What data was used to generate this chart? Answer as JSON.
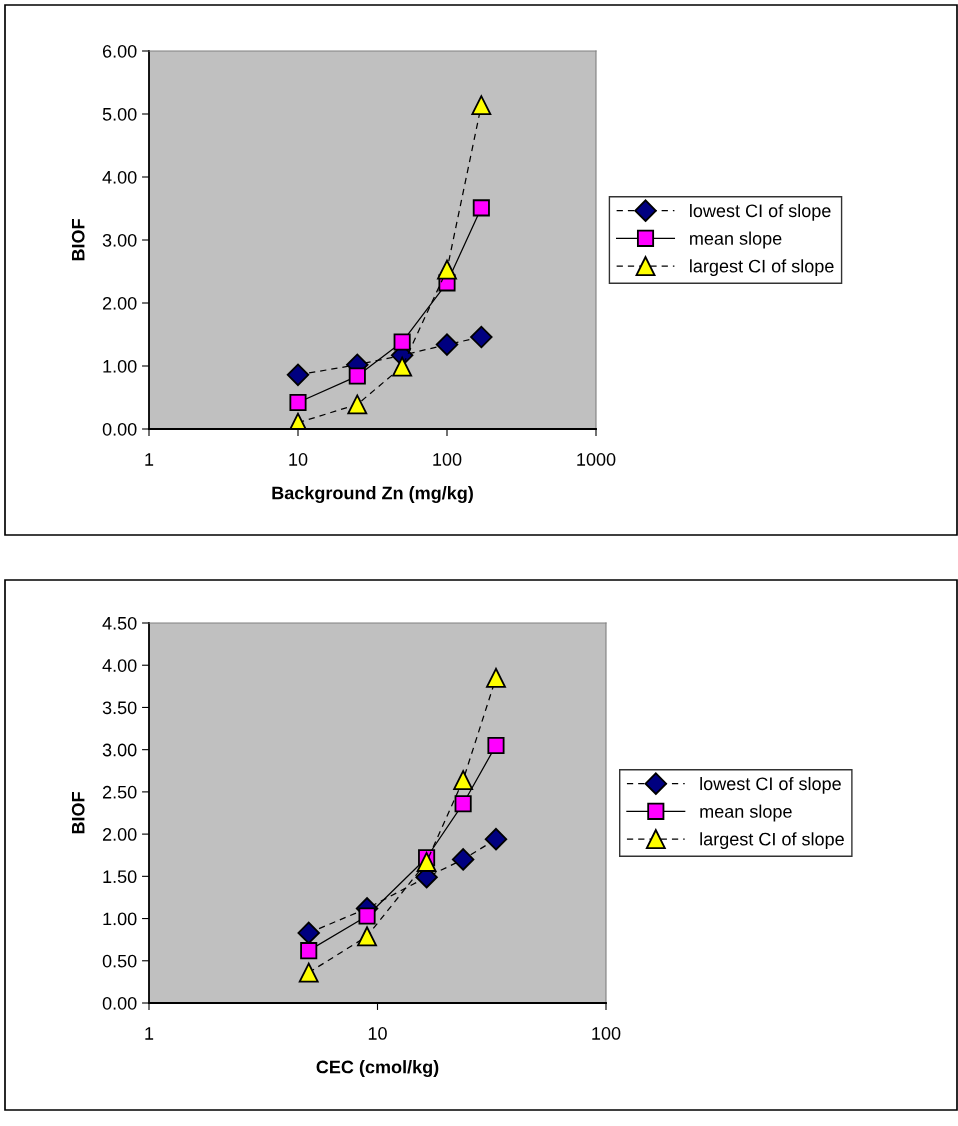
{
  "chart_data": [
    {
      "type": "line",
      "xlabel": "Background Zn (mg/kg)",
      "ylabel": "BIOF",
      "log": "x",
      "grid": false,
      "legend": "right",
      "x": [
        10,
        25,
        50,
        100,
        170
      ],
      "xlim": [
        1,
        1000
      ],
      "xticks": [
        1,
        10,
        100,
        1000
      ],
      "ylim": [
        0,
        6
      ],
      "yticks": [
        {
          "value": 0,
          "label": "0.00"
        },
        {
          "value": 1,
          "label": "1.00"
        },
        {
          "value": 2,
          "label": "2.00"
        },
        {
          "value": 3,
          "label": "3.00"
        },
        {
          "value": 4,
          "label": "4.00"
        },
        {
          "value": 5,
          "label": "5.00"
        },
        {
          "value": 6,
          "label": "6.00"
        }
      ],
      "series": [
        {
          "name": "lowest CI of slope",
          "color": "#000080",
          "marker": "diamond",
          "line_style": "dashed",
          "values": [
            0.86,
            1.02,
            1.17,
            1.34,
            1.46
          ]
        },
        {
          "name": "mean slope",
          "color": "#ff00ff",
          "marker": "square",
          "line_style": "solid",
          "values": [
            0.42,
            0.84,
            1.38,
            2.32,
            3.51
          ]
        },
        {
          "name": "largest CI of slope",
          "color": "#ffff00",
          "marker": "triangle",
          "line_style": "dashed",
          "values": [
            0.1,
            0.39,
            0.99,
            2.53,
            5.14
          ]
        }
      ]
    },
    {
      "type": "line",
      "xlabel": "CEC (cmol/kg)",
      "ylabel": "BIOF",
      "log": "x",
      "grid": false,
      "legend": "right",
      "x": [
        5,
        9,
        16.4,
        23.7,
        33
      ],
      "xlim": [
        1,
        100
      ],
      "xticks": [
        1,
        10,
        100
      ],
      "ylim": [
        0,
        4.5
      ],
      "yticks": [
        {
          "value": 0,
          "label": "0.00"
        },
        {
          "value": 0.5,
          "label": "0.50"
        },
        {
          "value": 1,
          "label": "1.00"
        },
        {
          "value": 1.5,
          "label": "1.50"
        },
        {
          "value": 2,
          "label": "2.00"
        },
        {
          "value": 2.5,
          "label": "2.50"
        },
        {
          "value": 3,
          "label": "3.00"
        },
        {
          "value": 3.5,
          "label": "3.50"
        },
        {
          "value": 4,
          "label": "4.00"
        },
        {
          "value": 4.5,
          "label": "4.50"
        }
      ],
      "series": [
        {
          "name": "lowest CI of slope",
          "color": "#000080",
          "marker": "diamond",
          "line_style": "dashed",
          "values": [
            0.83,
            1.12,
            1.49,
            1.7,
            1.94
          ]
        },
        {
          "name": "mean slope",
          "color": "#ff00ff",
          "marker": "square",
          "line_style": "solid",
          "values": [
            0.62,
            1.03,
            1.72,
            2.36,
            3.05
          ]
        },
        {
          "name": "largest CI of slope",
          "color": "#ffff00",
          "marker": "triangle",
          "line_style": "dashed",
          "values": [
            0.36,
            0.79,
            1.67,
            2.64,
            3.85
          ]
        }
      ]
    }
  ]
}
